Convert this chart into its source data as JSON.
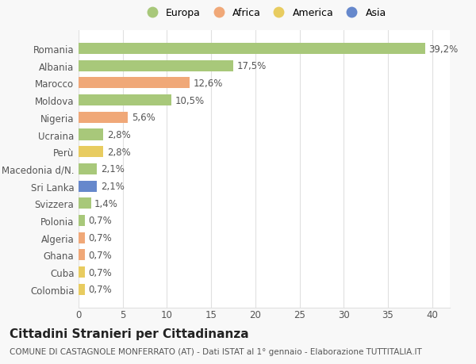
{
  "countries": [
    "Romania",
    "Albania",
    "Marocco",
    "Moldova",
    "Nigeria",
    "Ucraina",
    "Perù",
    "Macedonia d/N.",
    "Sri Lanka",
    "Svizzera",
    "Polonia",
    "Algeria",
    "Ghana",
    "Cuba",
    "Colombia"
  ],
  "values": [
    39.2,
    17.5,
    12.6,
    10.5,
    5.6,
    2.8,
    2.8,
    2.1,
    2.1,
    1.4,
    0.7,
    0.7,
    0.7,
    0.7,
    0.7
  ],
  "labels": [
    "39,2%",
    "17,5%",
    "12,6%",
    "10,5%",
    "5,6%",
    "2,8%",
    "2,8%",
    "2,1%",
    "2,1%",
    "1,4%",
    "0,7%",
    "0,7%",
    "0,7%",
    "0,7%",
    "0,7%"
  ],
  "colors": [
    "#a8c87a",
    "#a8c87a",
    "#f0a878",
    "#a8c87a",
    "#f0a878",
    "#a8c87a",
    "#e8cc60",
    "#a8c87a",
    "#6688cc",
    "#a8c87a",
    "#a8c87a",
    "#f0a878",
    "#f0a878",
    "#e8cc60",
    "#e8cc60"
  ],
  "legend_labels": [
    "Europa",
    "Africa",
    "America",
    "Asia"
  ],
  "legend_colors": [
    "#a8c87a",
    "#f0a878",
    "#e8cc60",
    "#6688cc"
  ],
  "xlim": [
    0,
    42
  ],
  "xticks": [
    0,
    5,
    10,
    15,
    20,
    25,
    30,
    35,
    40
  ],
  "title": "Cittadini Stranieri per Cittadinanza",
  "subtitle": "COMUNE DI CASTAGNOLE MONFERRATO (AT) - Dati ISTAT al 1° gennaio - Elaborazione TUTTITALIA.IT",
  "bg_color": "#f8f8f8",
  "plot_bg_color": "#ffffff",
  "grid_color": "#e0e0e0",
  "text_color": "#555555",
  "label_fontsize": 8.5,
  "tick_fontsize": 8.5,
  "title_fontsize": 11,
  "subtitle_fontsize": 7.5
}
